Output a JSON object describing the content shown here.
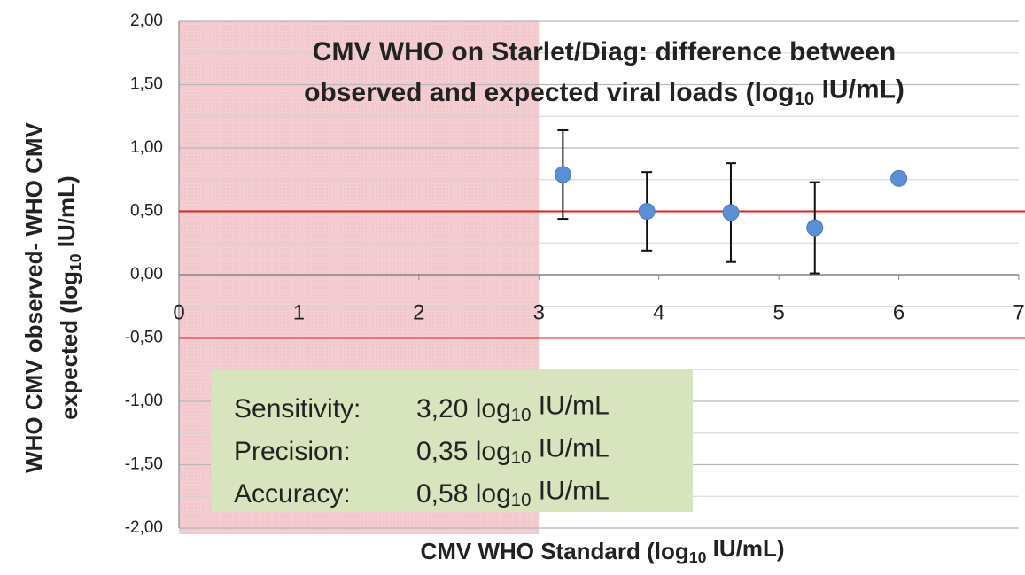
{
  "chart_data": {
    "type": "scatter",
    "title": {
      "line1": "CMV WHO on Starlet/Diag: difference between",
      "line2": [
        "observed and expected viral loads (log",
        "10",
        " IU/mL)"
      ]
    },
    "xlabel": [
      "CMV WHO Standard (log",
      "10",
      " IU/mL)"
    ],
    "ylabel": {
      "line1": "WHO CMV observed- WHO CMV",
      "line2": [
        "expected (log",
        "10",
        " IU/mL)"
      ]
    },
    "x": [
      3.2,
      3.9,
      4.6,
      5.3,
      6.0
    ],
    "series": [
      {
        "values": [
          0.79,
          0.5,
          0.49,
          0.37,
          0.76
        ],
        "errors": [
          0.35,
          0.31,
          0.39,
          0.36,
          null
        ],
        "color": "#5b8fd6"
      }
    ],
    "xlim": [
      0,
      7
    ],
    "ylim": [
      -2,
      2
    ],
    "xticks": [
      0,
      1,
      2,
      3,
      4,
      5,
      6,
      7
    ],
    "yticks": [
      {
        "value": -2,
        "label": "-2,00"
      },
      {
        "value": -1.5,
        "label": "-1,50"
      },
      {
        "value": -1,
        "label": "-1,00"
      },
      {
        "value": -0.5,
        "label": "-0,50"
      },
      {
        "value": 0,
        "label": "0,00"
      },
      {
        "value": 0.5,
        "label": "0,50"
      },
      {
        "value": 1,
        "label": "1,00"
      },
      {
        "value": 1.5,
        "label": "1,50"
      },
      {
        "value": 2,
        "label": "2,00"
      }
    ],
    "grid": true,
    "minor_grid": true,
    "reference_lines": {
      "values": [
        0.5,
        -0.5
      ],
      "color": "#e0201b"
    },
    "shaded_region": {
      "x": [
        0,
        3
      ],
      "color": "#f4cdd2"
    },
    "annotation": {
      "color": "#d7e4bd",
      "rows": [
        {
          "label": "Sensitivity:",
          "value": [
            "3,20 log",
            "10",
            " IU/mL"
          ]
        },
        {
          "label": "Precision:",
          "value": [
            "0,35 log",
            "10",
            " IU/mL"
          ]
        },
        {
          "label": "Accuracy:",
          "value": [
            "0,58 log",
            "10",
            " IU/mL"
          ]
        }
      ]
    }
  }
}
